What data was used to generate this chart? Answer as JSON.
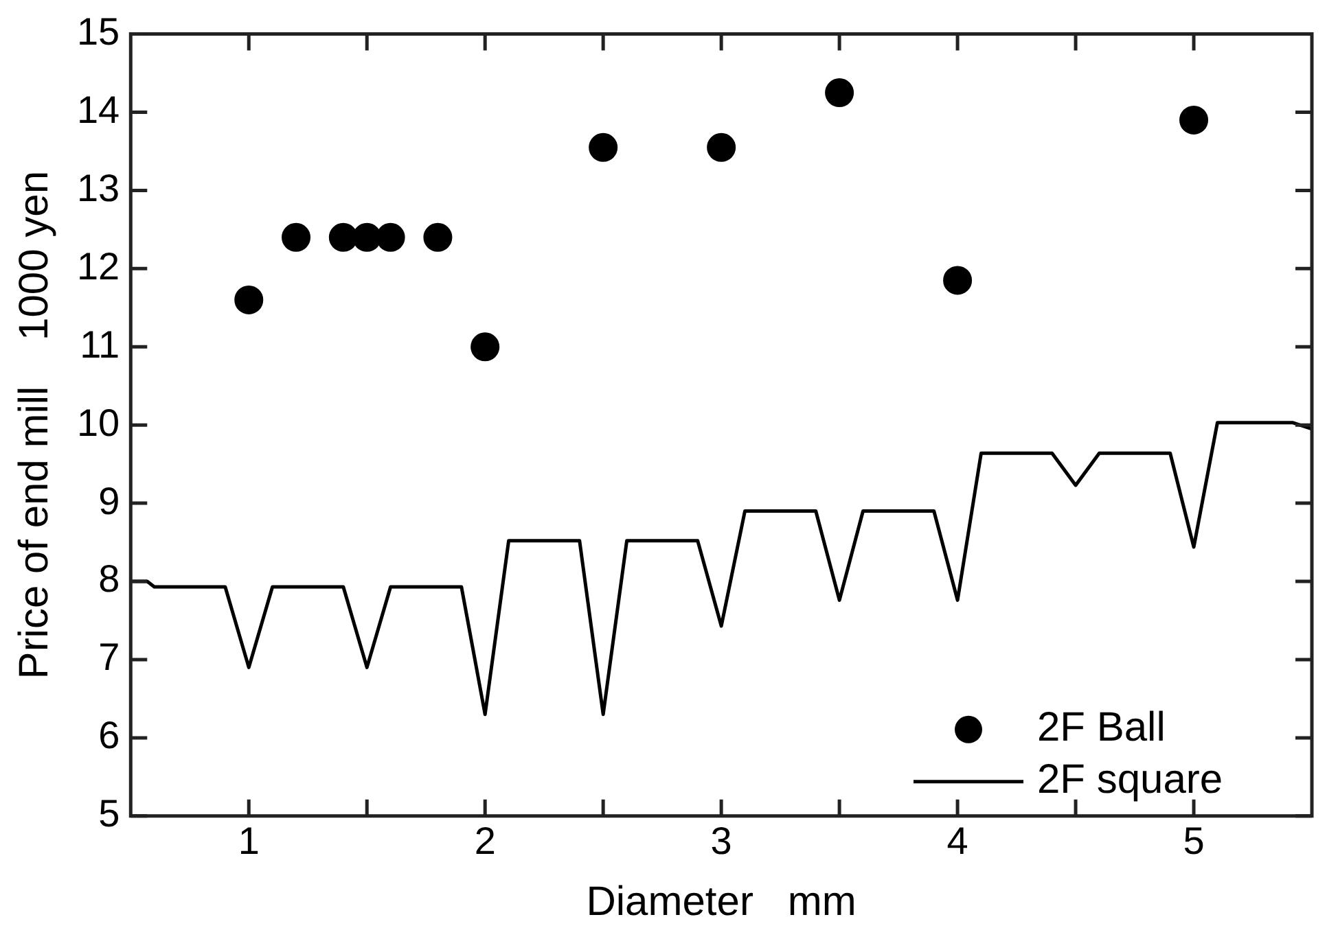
{
  "chart_data": {
    "type": "scatter",
    "xlabel": "Diameter   mm",
    "ylabel": "Price of end mill    1000 yen",
    "xlim": [
      0.5,
      5.5
    ],
    "ylim": [
      5,
      15
    ],
    "xticks": [
      1,
      {
        "value": 1.5,
        "label": null
      },
      2,
      {
        "value": 2.5,
        "label": null
      },
      3,
      {
        "value": 3.5,
        "label": null
      },
      4,
      {
        "value": 4.5,
        "label": null
      },
      5
    ],
    "yticks": [
      5,
      6,
      7,
      8,
      9,
      10,
      11,
      12,
      13,
      14,
      15
    ],
    "grid": false,
    "legend": "bottom right",
    "series": [
      {
        "name": "2F Ball",
        "marker": "circle",
        "color": "#000000",
        "x": [
          1,
          1.2,
          1.4,
          1.5,
          1.6,
          1.8,
          2,
          2.5,
          3,
          3.5,
          4,
          5
        ],
        "values": [
          11.6,
          12.4,
          12.4,
          12.4,
          12.4,
          12.4,
          11.0,
          13.55,
          13.55,
          14.25,
          11.85,
          13.9
        ]
      },
      {
        "name": "2F square",
        "type": "line",
        "marker": "none",
        "line_style": "solid",
        "color": "#000000",
        "x": [
          0.5,
          0.57,
          0.6,
          0.9,
          1,
          1.1,
          1.4,
          1.5,
          1.6,
          1.9,
          2,
          2.1,
          2.4,
          2.5,
          2.6,
          2.9,
          3,
          3.1,
          3.4,
          3.5,
          3.6,
          3.9,
          4,
          4.1,
          4.4,
          4.5,
          4.6,
          4.9,
          5,
          5.1,
          5.42,
          5.5
        ],
        "values": [
          8.0,
          8.0,
          7.93,
          7.93,
          6.9,
          7.93,
          7.93,
          6.9,
          7.93,
          7.93,
          6.3,
          8.52,
          8.52,
          6.3,
          8.52,
          8.52,
          7.43,
          8.9,
          8.9,
          7.76,
          8.9,
          8.9,
          7.76,
          9.64,
          9.64,
          9.23,
          9.64,
          9.64,
          8.44,
          10.03,
          10.03,
          9.95
        ]
      }
    ]
  }
}
